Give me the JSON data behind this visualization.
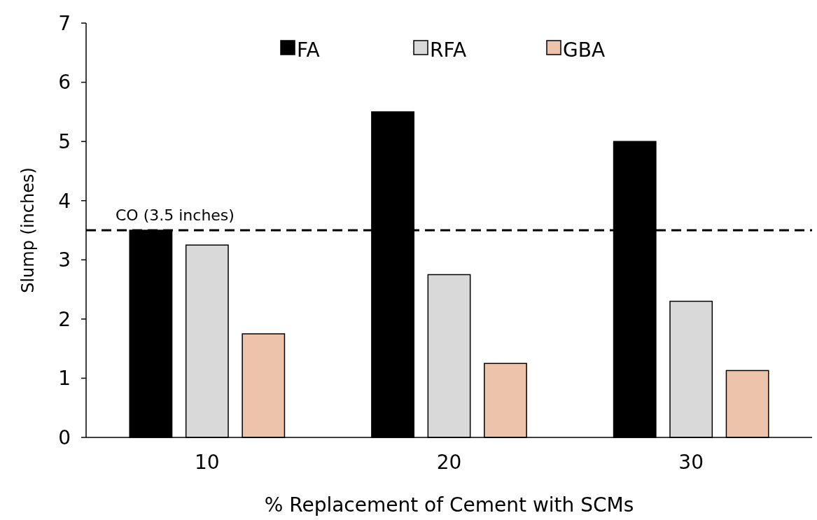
{
  "chart_data": {
    "type": "bar",
    "xlabel": "% Replacement of Cement with SCMs",
    "ylabel": "Slump (inches)",
    "categories": [
      "10",
      "20",
      "30"
    ],
    "series": [
      {
        "name": "FA",
        "color": "#000000",
        "values": [
          3.5,
          5.5,
          5.0
        ]
      },
      {
        "name": "RFA",
        "color": "#d9d9d9",
        "values": [
          3.25,
          2.75,
          2.3
        ]
      },
      {
        "name": "GBA",
        "color": "#edc3ab",
        "values": [
          1.75,
          1.25,
          1.13
        ]
      }
    ],
    "ylim": [
      0,
      7
    ],
    "yticks": [
      0,
      1,
      2,
      3,
      4,
      5,
      6,
      7
    ],
    "ref_lines": [
      {
        "axis": "y",
        "value": 3.5,
        "label": "CO (3.5 inches)",
        "color": "#000000",
        "line_style": "dashed"
      }
    ],
    "legend": "top",
    "grid": false
  }
}
